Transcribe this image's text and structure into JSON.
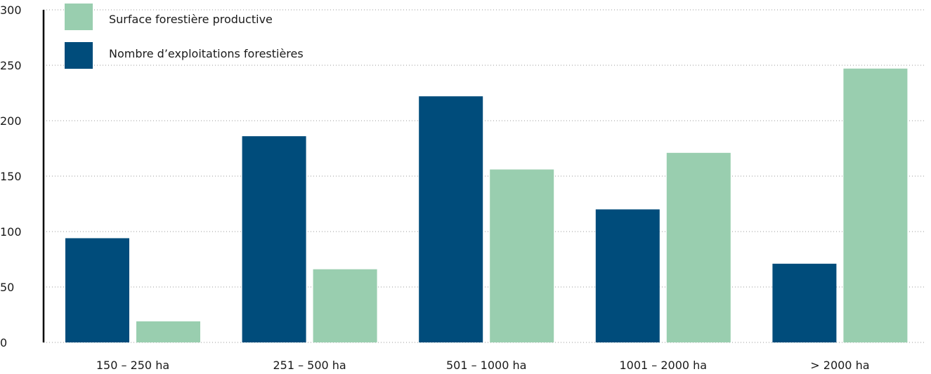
{
  "chart_data": {
    "type": "bar",
    "categories": [
      "150 – 250 ha",
      "251 – 500 ha",
      "501 – 1000 ha",
      "1001 – 2000 ha",
      "> 2000 ha"
    ],
    "series": [
      {
        "name": "Nombre d’exploitations forestières",
        "color": "#004c7b",
        "values": [
          94,
          186,
          222,
          120,
          71
        ]
      },
      {
        "name": "Surface forestière productive",
        "color": "#99ceaf",
        "values": [
          19,
          66,
          156,
          171,
          247
        ]
      }
    ],
    "legend": {
      "order": [
        "Surface forestière productive",
        "Nombre d’exploitations forestières"
      ],
      "placement": "top-left"
    },
    "yticks": [
      "0",
      "50",
      "100",
      "150",
      "200",
      "250",
      "300"
    ],
    "ylim": [
      0,
      300
    ],
    "grid": true
  }
}
